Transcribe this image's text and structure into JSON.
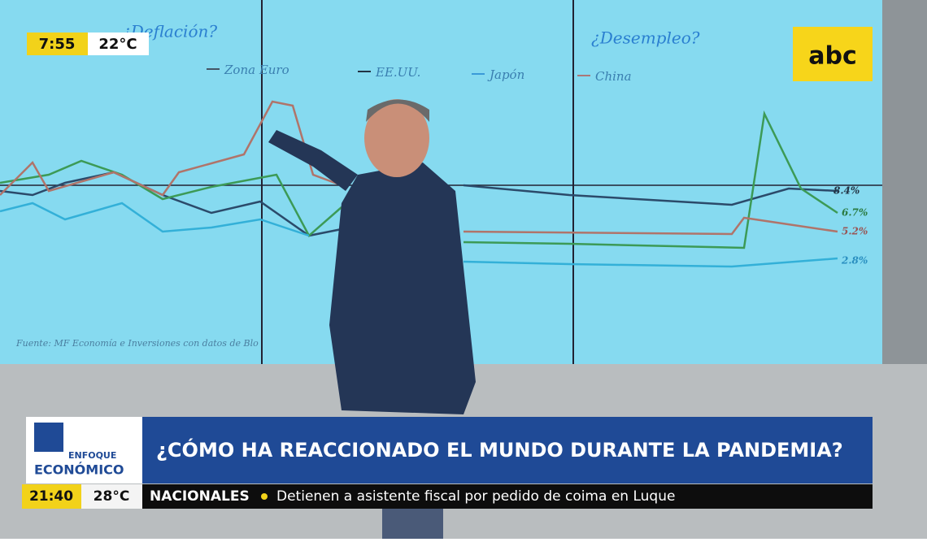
{
  "clock": {
    "time": "7:55",
    "temperature": "22°C"
  },
  "screen": {
    "left_title": "¿Deflación?",
    "right_title": "¿Desempleo?",
    "legend": [
      "Zona Euro",
      "EE.UU.",
      "Japón",
      "China"
    ],
    "end_labels": [
      "8.4%",
      "6.7%",
      "5.2%",
      "2.8%"
    ],
    "source": "Fuente: MF Economía e Inversiones con datos de Blo"
  },
  "logo": "abc",
  "program": {
    "line1": "ENFOQUE",
    "line2": "ECONÓMICO"
  },
  "headline": "¿CÓMO HA REACCIONADO EL MUNDO DURANTE LA PANDEMIA?",
  "ticker": {
    "time": "21:40",
    "temperature": "28°C",
    "section": "NACIONALES",
    "text": "Detienen a asistente fiscal por pedido de coima en Luque"
  }
}
